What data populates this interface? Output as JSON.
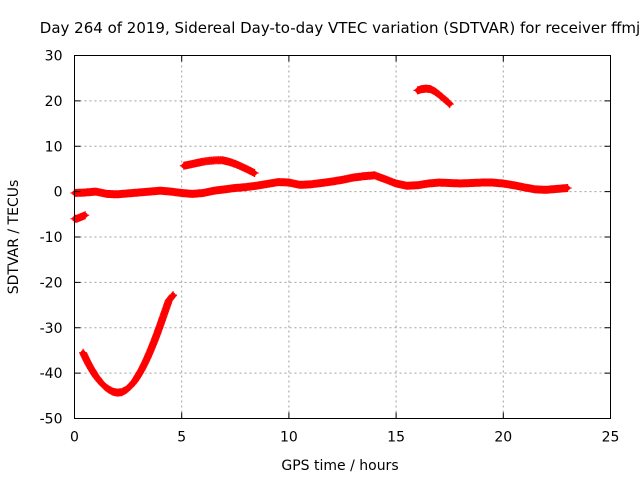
{
  "chart_data": {
    "type": "scatter",
    "title": "Day 264 of 2019, Sidereal Day-to-day VTEC variation (SDTVAR) for receiver ffmj",
    "xlabel": "GPS time / hours",
    "ylabel": "SDTVAR / TECUs",
    "xlim": [
      0,
      25
    ],
    "ylim": [
      -50,
      30
    ],
    "xticks": [
      0,
      5,
      10,
      15,
      20,
      25
    ],
    "yticks": [
      30,
      20,
      10,
      0,
      -10,
      -20,
      -30,
      -40,
      -50
    ],
    "grid": true,
    "marker": "plus",
    "series": [
      {
        "name": "ffmj",
        "color": "#ff0000",
        "segments": [
          {
            "x": [
              0.0,
              0.1,
              0.2,
              0.3,
              0.4,
              0.5
            ],
            "y": [
              -6.0,
              -6.0,
              -5.8,
              -5.6,
              -5.4,
              -5.2
            ]
          },
          {
            "x": [
              0.4,
              0.6,
              0.8,
              1.0,
              1.2,
              1.4,
              1.6,
              1.8,
              2.0,
              2.2,
              2.4,
              2.6,
              2.8,
              3.0,
              3.2,
              3.4,
              3.6,
              3.8,
              4.0,
              4.2,
              4.4,
              4.6
            ],
            "y": [
              -35.5,
              -37.5,
              -39.2,
              -40.7,
              -41.9,
              -42.9,
              -43.6,
              -44.1,
              -44.3,
              -44.2,
              -43.7,
              -42.9,
              -41.8,
              -40.3,
              -38.6,
              -36.6,
              -34.4,
              -32.0,
              -29.4,
              -26.7,
              -24.0,
              -22.8
            ]
          },
          {
            "x": [
              0.0,
              0.5,
              1.0,
              1.5,
              2.0,
              2.5,
              3.0,
              3.5,
              4.0,
              4.5,
              5.0,
              5.5,
              6.0,
              6.5,
              7.0,
              7.5,
              8.0,
              8.5,
              9.0,
              9.5,
              10.0,
              10.5,
              11.0,
              11.5,
              12.0,
              12.5,
              13.0,
              13.5,
              14.0,
              14.5,
              15.0,
              15.5,
              16.0,
              16.5,
              17.0,
              17.5,
              18.0,
              18.5,
              19.0,
              19.5,
              20.0,
              20.5,
              21.0,
              21.5,
              22.0,
              22.5,
              23.0
            ],
            "y": [
              -0.3,
              -0.2,
              0.0,
              -0.5,
              -0.6,
              -0.4,
              -0.2,
              0.0,
              0.2,
              0.0,
              -0.3,
              -0.5,
              -0.3,
              0.2,
              0.5,
              0.8,
              1.0,
              1.3,
              1.7,
              2.1,
              2.0,
              1.5,
              1.6,
              1.9,
              2.2,
              2.6,
              3.1,
              3.4,
              3.6,
              2.7,
              1.8,
              1.3,
              1.4,
              1.8,
              2.0,
              1.9,
              1.8,
              1.9,
              2.0,
              2.0,
              1.8,
              1.4,
              0.9,
              0.5,
              0.4,
              0.6,
              0.8
            ]
          },
          {
            "x": [
              5.1,
              5.4,
              5.7,
              6.0,
              6.3,
              6.6,
              6.9,
              7.2,
              7.5,
              7.8,
              8.1,
              8.4
            ],
            "y": [
              5.7,
              6.0,
              6.3,
              6.6,
              6.8,
              6.9,
              6.9,
              6.6,
              6.1,
              5.5,
              4.8,
              4.1
            ]
          },
          {
            "x": [
              16.0,
              16.2,
              16.4,
              16.6,
              16.8,
              17.0,
              17.2,
              17.4,
              17.5
            ],
            "y": [
              22.3,
              22.6,
              22.7,
              22.6,
              22.1,
              21.4,
              20.6,
              19.8,
              19.3
            ]
          }
        ]
      }
    ]
  }
}
